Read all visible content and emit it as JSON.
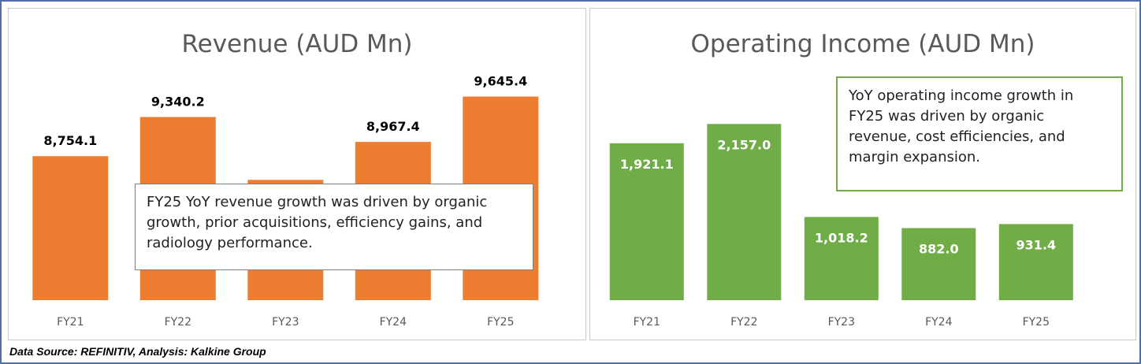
{
  "chart_data": [
    {
      "type": "bar",
      "title": "Revenue (AUD Mn)",
      "categories": [
        "FY21",
        "FY22",
        "FY23",
        "FY24",
        "FY25"
      ],
      "values": [
        8754.1,
        9340.2,
        8400,
        8967.4,
        9645.4
      ],
      "value_labels": [
        "8,754.1",
        "9,340.2",
        "",
        "8,967.4",
        "9,645.4"
      ],
      "ylim": [
        6600,
        9900
      ],
      "color": "#ed7d31",
      "annotation": "FY25 YoY revenue growth was driven by organic growth, prior acquisitions, efficiency gains, and radiology performance."
    },
    {
      "type": "bar",
      "title": "Operating Income (AUD Mn)",
      "categories": [
        "FY21",
        "FY22",
        "FY23",
        "FY24",
        "FY25"
      ],
      "values": [
        1921.1,
        2157.0,
        1018.2,
        882.0,
        931.4
      ],
      "value_labels": [
        "1,921.1",
        "2,157.0",
        "1,018.2",
        "882.0",
        "931.4"
      ],
      "ylim": [
        0,
        2700
      ],
      "color": "#70ad47",
      "annotation": "YoY operating income growth in FY25 was driven by organic revenue, cost efficiencies, and margin expansion."
    }
  ],
  "footer": {
    "source": "Data Source: REFINITIV, Analysis: Kalkine Group"
  }
}
